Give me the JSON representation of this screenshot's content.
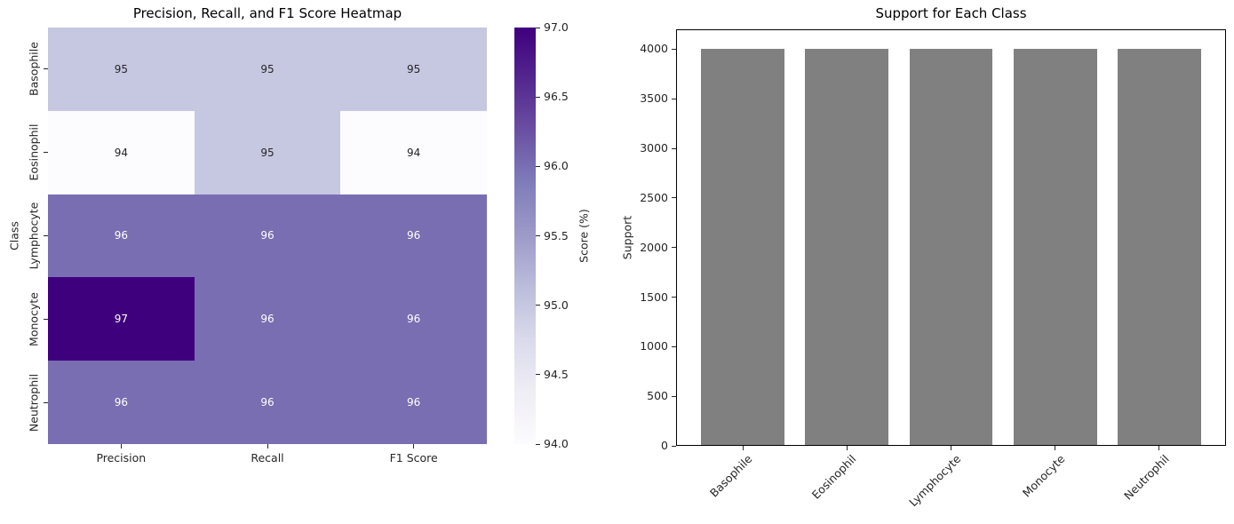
{
  "chart_data": [
    {
      "type": "heatmap",
      "title": "Precision, Recall, and F1 Score Heatmap",
      "xlabel": "",
      "ylabel": "Class",
      "columns": [
        "Precision",
        "Recall",
        "F1 Score"
      ],
      "rows": [
        "Basophile",
        "Eosinophil",
        "Lymphocyte",
        "Monocyte",
        "Neutrophil"
      ],
      "values": [
        [
          95,
          95,
          95
        ],
        [
          94,
          95,
          94
        ],
        [
          96,
          96,
          96
        ],
        [
          97,
          96,
          96
        ],
        [
          96,
          96,
          96
        ]
      ],
      "colormap": "Purples",
      "colormap_stops": [
        "#fcfbfd",
        "#efedf5",
        "#dadaeb",
        "#bcbddc",
        "#9e9ac8",
        "#807dba",
        "#6a51a3",
        "#54278f",
        "#3f007d"
      ],
      "cell_colors": {
        "94": "#fcfbfd",
        "95": "#c6c7e1",
        "96": "#796eb2",
        "97": "#3f007d"
      },
      "colorbar": {
        "label": "Score (%)",
        "min": 94.0,
        "max": 97.0,
        "ticks": [
          "97.0",
          "96.5",
          "96.0",
          "95.5",
          "95.0",
          "94.5",
          "94.0"
        ]
      },
      "grid": false
    },
    {
      "type": "bar",
      "title": "Support for Each Class",
      "xlabel": "",
      "ylabel": "Support",
      "categories": [
        "Basophile",
        "Eosinophil",
        "Lymphocyte",
        "Monocyte",
        "Neutrophil"
      ],
      "values": [
        4000,
        4000,
        4000,
        4000,
        4000
      ],
      "yticks": [
        0,
        500,
        1000,
        1500,
        2000,
        2500,
        3000,
        3500,
        4000
      ],
      "ylim": [
        0,
        4200
      ],
      "bar_color": "#808080",
      "grid": false,
      "legend": "none",
      "xtick_rotation": 45
    }
  ]
}
